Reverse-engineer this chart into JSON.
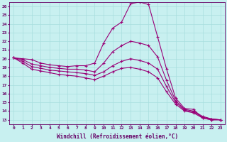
{
  "bg_color": "#c8f0f0",
  "line_color": "#990077",
  "grid_color": "#a8dede",
  "xlabel": "Windchill (Refroidissement éolien,°C)",
  "xlabel_color": "#660066",
  "tick_color": "#660066",
  "xlim": [
    -0.5,
    23.5
  ],
  "ylim": [
    12.5,
    26.5
  ],
  "yticks": [
    13,
    14,
    15,
    16,
    17,
    18,
    19,
    20,
    21,
    22,
    23,
    24,
    25,
    26
  ],
  "xticks": [
    0,
    1,
    2,
    3,
    4,
    5,
    6,
    7,
    8,
    9,
    10,
    11,
    12,
    13,
    14,
    15,
    16,
    17,
    18,
    19,
    20,
    21,
    22,
    23
  ],
  "series": [
    [
      20.1,
      20.0,
      19.9,
      19.5,
      19.3,
      19.2,
      19.1,
      19.2,
      19.2,
      19.5,
      21.8,
      23.5,
      24.2,
      26.3,
      26.5,
      26.2,
      22.5,
      18.8,
      15.5,
      14.3,
      14.2,
      13.2,
      13.0,
      13.0
    ],
    [
      20.1,
      19.9,
      19.4,
      19.2,
      19.0,
      18.9,
      18.8,
      18.8,
      18.7,
      18.5,
      19.5,
      20.8,
      21.5,
      22.0,
      21.8,
      21.5,
      20.2,
      17.5,
      15.2,
      14.2,
      14.0,
      13.4,
      13.1,
      13.0
    ],
    [
      20.1,
      19.7,
      19.1,
      18.9,
      18.7,
      18.6,
      18.5,
      18.4,
      18.3,
      18.1,
      18.5,
      19.2,
      19.7,
      20.0,
      19.8,
      19.5,
      18.8,
      16.8,
      15.0,
      14.1,
      13.9,
      13.3,
      13.1,
      13.0
    ],
    [
      20.1,
      19.5,
      18.8,
      18.6,
      18.4,
      18.2,
      18.1,
      18.0,
      17.8,
      17.6,
      18.0,
      18.5,
      18.9,
      19.0,
      18.8,
      18.5,
      17.8,
      16.2,
      14.8,
      14.0,
      13.8,
      13.2,
      13.0,
      13.0
    ]
  ]
}
